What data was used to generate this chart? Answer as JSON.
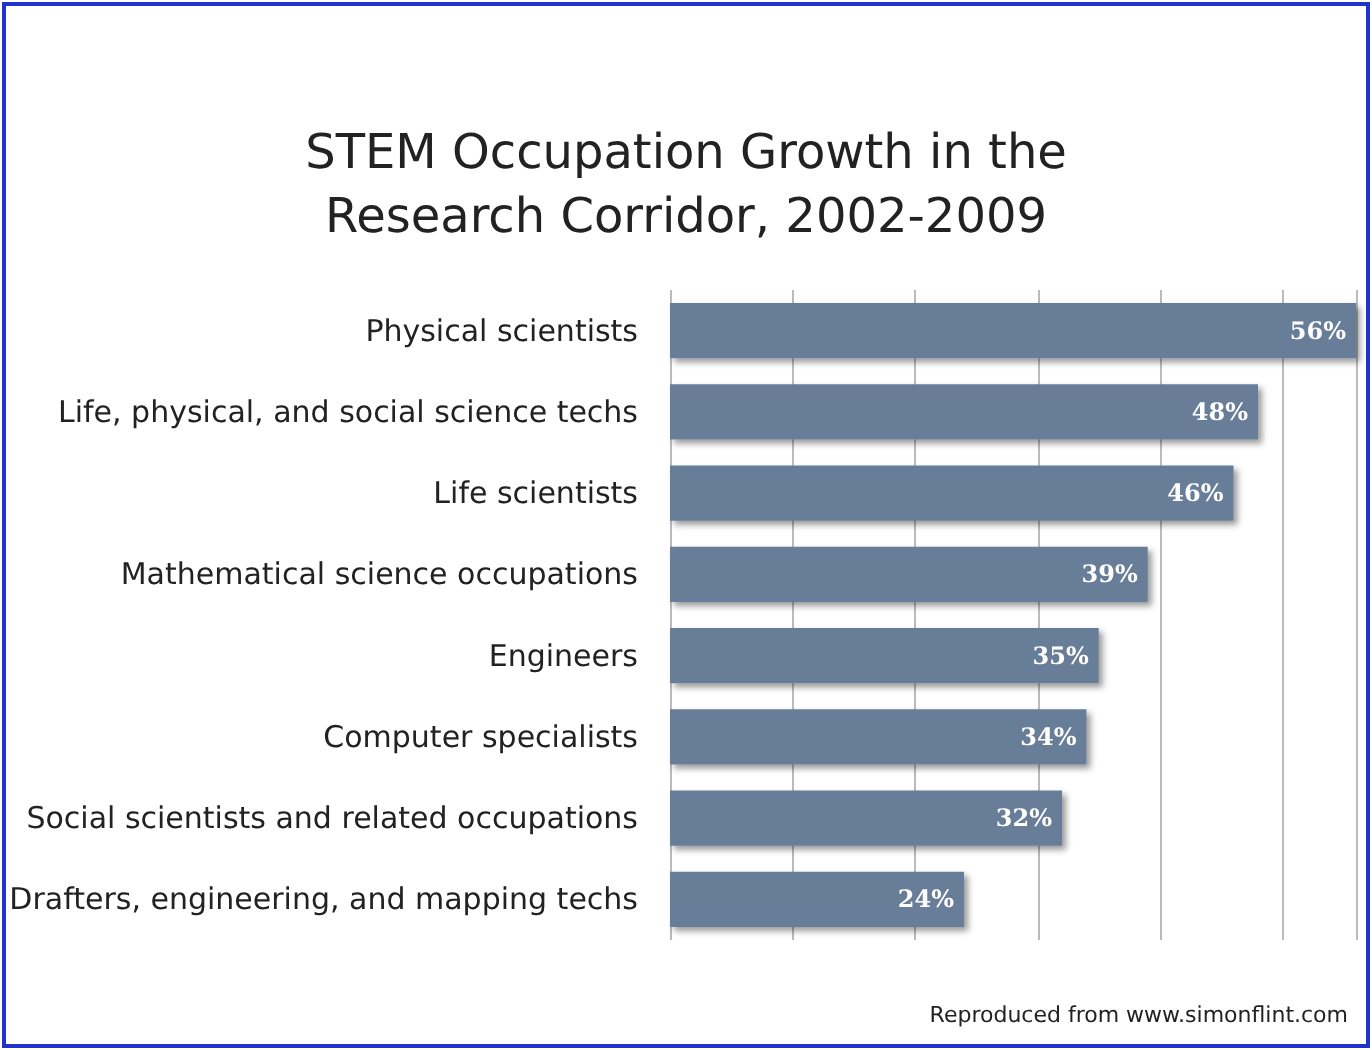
{
  "chart_data": {
    "type": "bar",
    "orientation": "horizontal",
    "title": "STEM Occupation Growth in the\nResearch Corridor, 2002-2009",
    "categories": [
      "Physical scientists",
      "Life, physical, and social science techs",
      "Life scientists",
      "Mathematical science occupations",
      "Engineers",
      "Computer specialists",
      "Social scientists and related occupations",
      "Drafters, engineering, and mapping techs"
    ],
    "values": [
      56,
      48,
      46,
      39,
      35,
      34,
      32,
      24
    ],
    "value_labels": [
      "56%",
      "48%",
      "46%",
      "39%",
      "35%",
      "34%",
      "32%",
      "24%"
    ],
    "color": "#687d98",
    "xlim": [
      0,
      56
    ],
    "grid": "x",
    "annotations": [
      "Reproduced from www.simonflint.com"
    ]
  }
}
